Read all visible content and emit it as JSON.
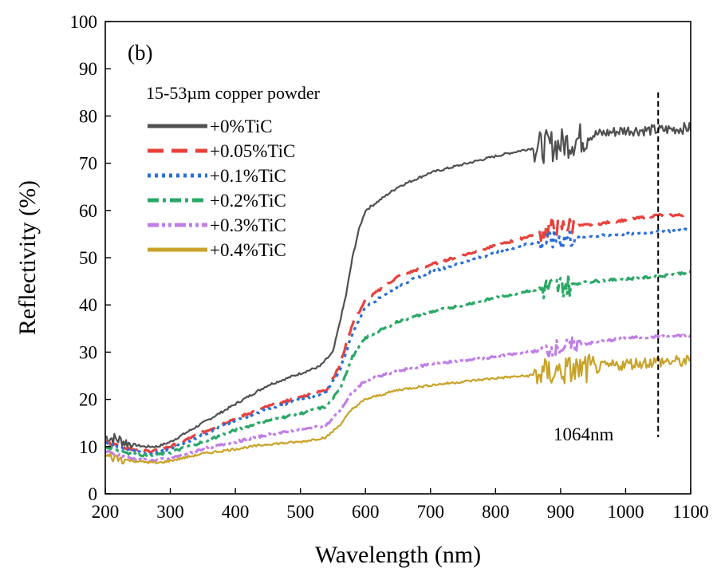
{
  "chart_data": {
    "type": "line",
    "panel_label": "(b)",
    "legend_title": "15-53µm copper powder",
    "xlabel": "Wavelength (nm)",
    "ylabel": "Reflectivity (%)",
    "xlim": [
      200,
      1100
    ],
    "ylim": [
      0,
      100
    ],
    "x_ticks": [
      "200",
      "300",
      "400",
      "500",
      "600",
      "700",
      "800",
      "900",
      "1000",
      "1100"
    ],
    "y_ticks": [
      "0",
      "10",
      "20",
      "30",
      "40",
      "50",
      "60",
      "70",
      "80",
      "90",
      "100"
    ],
    "grid": false,
    "legend_position": "top-left",
    "annotation": {
      "text": "1064nm",
      "x": 1050,
      "y_range": [
        12,
        85
      ]
    },
    "series": [
      {
        "name": "+0%TiC",
        "color": "#505050",
        "dash": "solid",
        "noise": [
          [
            200,
            240,
            1.4
          ],
          [
            860,
            940,
            3.5
          ],
          [
            940,
            1100,
            1.2
          ]
        ],
        "points": [
          [
            200,
            12
          ],
          [
            220,
            11.5
          ],
          [
            240,
            10.5
          ],
          [
            260,
            10
          ],
          [
            280,
            10
          ],
          [
            300,
            11
          ],
          [
            350,
            15
          ],
          [
            400,
            19
          ],
          [
            450,
            23
          ],
          [
            500,
            25.5
          ],
          [
            530,
            27
          ],
          [
            550,
            30
          ],
          [
            570,
            42
          ],
          [
            580,
            50
          ],
          [
            590,
            56
          ],
          [
            600,
            60
          ],
          [
            650,
            65
          ],
          [
            700,
            68
          ],
          [
            800,
            71.5
          ],
          [
            850,
            73
          ],
          [
            900,
            74
          ],
          [
            950,
            76
          ],
          [
            1000,
            77
          ],
          [
            1050,
            77
          ],
          [
            1100,
            77.5
          ]
        ]
      },
      {
        "name": "+0.05%TiC",
        "color": "#e8413c",
        "dash": "20,10",
        "noise": [
          [
            870,
            920,
            2.0
          ]
        ],
        "points": [
          [
            200,
            11
          ],
          [
            240,
            9.5
          ],
          [
            270,
            9
          ],
          [
            300,
            10
          ],
          [
            350,
            13
          ],
          [
            400,
            16
          ],
          [
            450,
            18.5
          ],
          [
            500,
            20.5
          ],
          [
            540,
            22
          ],
          [
            560,
            27
          ],
          [
            580,
            36
          ],
          [
            600,
            41
          ],
          [
            650,
            46
          ],
          [
            700,
            48.5
          ],
          [
            800,
            52.5
          ],
          [
            850,
            54.5
          ],
          [
            880,
            56
          ],
          [
            900,
            56.5
          ],
          [
            950,
            57
          ],
          [
            1000,
            58
          ],
          [
            1050,
            59
          ],
          [
            1100,
            59
          ]
        ]
      },
      {
        "name": "+0.1%TiC",
        "color": "#2a6fd6",
        "dash": "4,5",
        "noise": [
          [
            870,
            920,
            2.2
          ]
        ],
        "points": [
          [
            200,
            11
          ],
          [
            240,
            9
          ],
          [
            270,
            8.5
          ],
          [
            300,
            9.5
          ],
          [
            350,
            12.5
          ],
          [
            400,
            15.5
          ],
          [
            450,
            18
          ],
          [
            500,
            20
          ],
          [
            540,
            21.5
          ],
          [
            560,
            26
          ],
          [
            580,
            34
          ],
          [
            600,
            39.5
          ],
          [
            650,
            44
          ],
          [
            700,
            47
          ],
          [
            800,
            51
          ],
          [
            850,
            53
          ],
          [
            880,
            53.5
          ],
          [
            900,
            54
          ],
          [
            950,
            54.5
          ],
          [
            1000,
            55
          ],
          [
            1050,
            55.5
          ],
          [
            1100,
            56
          ]
        ]
      },
      {
        "name": "+0.2%TiC",
        "color": "#2aa866",
        "dash": "14,5,4,5",
        "noise": [
          [
            865,
            915,
            2.6
          ]
        ],
        "points": [
          [
            200,
            10
          ],
          [
            240,
            8.5
          ],
          [
            270,
            8
          ],
          [
            300,
            8.8
          ],
          [
            350,
            11
          ],
          [
            400,
            13.5
          ],
          [
            450,
            15.5
          ],
          [
            500,
            17
          ],
          [
            540,
            18.5
          ],
          [
            560,
            22
          ],
          [
            580,
            29
          ],
          [
            600,
            33
          ],
          [
            650,
            36.5
          ],
          [
            700,
            38.5
          ],
          [
            800,
            41.5
          ],
          [
            850,
            43
          ],
          [
            880,
            43.5
          ],
          [
            900,
            44
          ],
          [
            950,
            45
          ],
          [
            1000,
            45.5
          ],
          [
            1050,
            46
          ],
          [
            1100,
            47
          ]
        ]
      },
      {
        "name": "+0.3%TiC",
        "color": "#c07ee8",
        "dash": "14,4,4,4,4,4",
        "noise": [
          [
            870,
            930,
            1.8
          ]
        ],
        "points": [
          [
            200,
            9
          ],
          [
            240,
            7.5
          ],
          [
            270,
            7
          ],
          [
            300,
            7.5
          ],
          [
            350,
            9.5
          ],
          [
            400,
            11
          ],
          [
            450,
            12.5
          ],
          [
            500,
            13.5
          ],
          [
            540,
            14.5
          ],
          [
            560,
            17.5
          ],
          [
            580,
            21.5
          ],
          [
            600,
            24
          ],
          [
            650,
            26
          ],
          [
            700,
            27.5
          ],
          [
            800,
            29
          ],
          [
            850,
            30
          ],
          [
            900,
            31
          ],
          [
            950,
            32
          ],
          [
            1000,
            33
          ],
          [
            1050,
            33.3
          ],
          [
            1100,
            33.5
          ]
        ]
      },
      {
        "name": "+0.4%TiC",
        "color": "#c9a227",
        "dash": "solid",
        "noise": [
          [
            200,
            230,
            1.0
          ],
          [
            860,
            950,
            3.2
          ],
          [
            950,
            1100,
            1.3
          ]
        ],
        "points": [
          [
            200,
            8
          ],
          [
            240,
            7
          ],
          [
            280,
            6.5
          ],
          [
            300,
            7
          ],
          [
            350,
            8.5
          ],
          [
            400,
            9.5
          ],
          [
            450,
            10.5
          ],
          [
            500,
            11
          ],
          [
            540,
            12
          ],
          [
            560,
            14.5
          ],
          [
            580,
            18
          ],
          [
            600,
            20
          ],
          [
            650,
            22
          ],
          [
            700,
            23
          ],
          [
            800,
            24.5
          ],
          [
            850,
            25
          ],
          [
            900,
            26
          ],
          [
            950,
            26.5
          ],
          [
            1000,
            27.5
          ],
          [
            1050,
            28
          ],
          [
            1100,
            28
          ]
        ]
      }
    ]
  }
}
